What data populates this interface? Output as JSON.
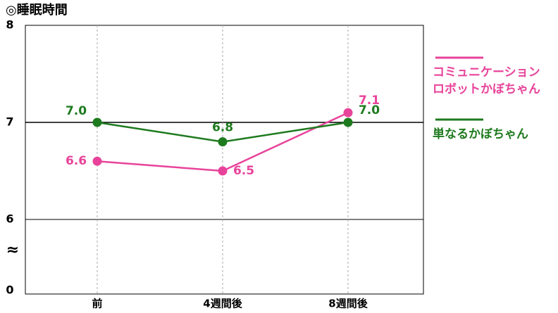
{
  "chart_data": {
    "type": "line",
    "title": "◎睡眠時間",
    "categories": [
      "前",
      "4週間後",
      "8週間後"
    ],
    "series": [
      {
        "name": "コミュニケーションロボットかぼちゃん",
        "color": "#e8439a",
        "values": [
          6.6,
          6.5,
          7.1
        ],
        "value_labels": [
          "6.6",
          "6.5",
          "7.1"
        ]
      },
      {
        "name": "単なるかぼちゃん",
        "color": "#1e7a1e",
        "values": [
          7,
          6.8,
          7
        ],
        "value_labels": [
          "7.0",
          "6.8",
          "7.0"
        ]
      }
    ],
    "ylim": [
      0,
      8
    ],
    "yticks": [
      0,
      6,
      7,
      8
    ],
    "y_break": [
      0,
      6
    ],
    "break_symbol": "≈",
    "grid": true
  }
}
